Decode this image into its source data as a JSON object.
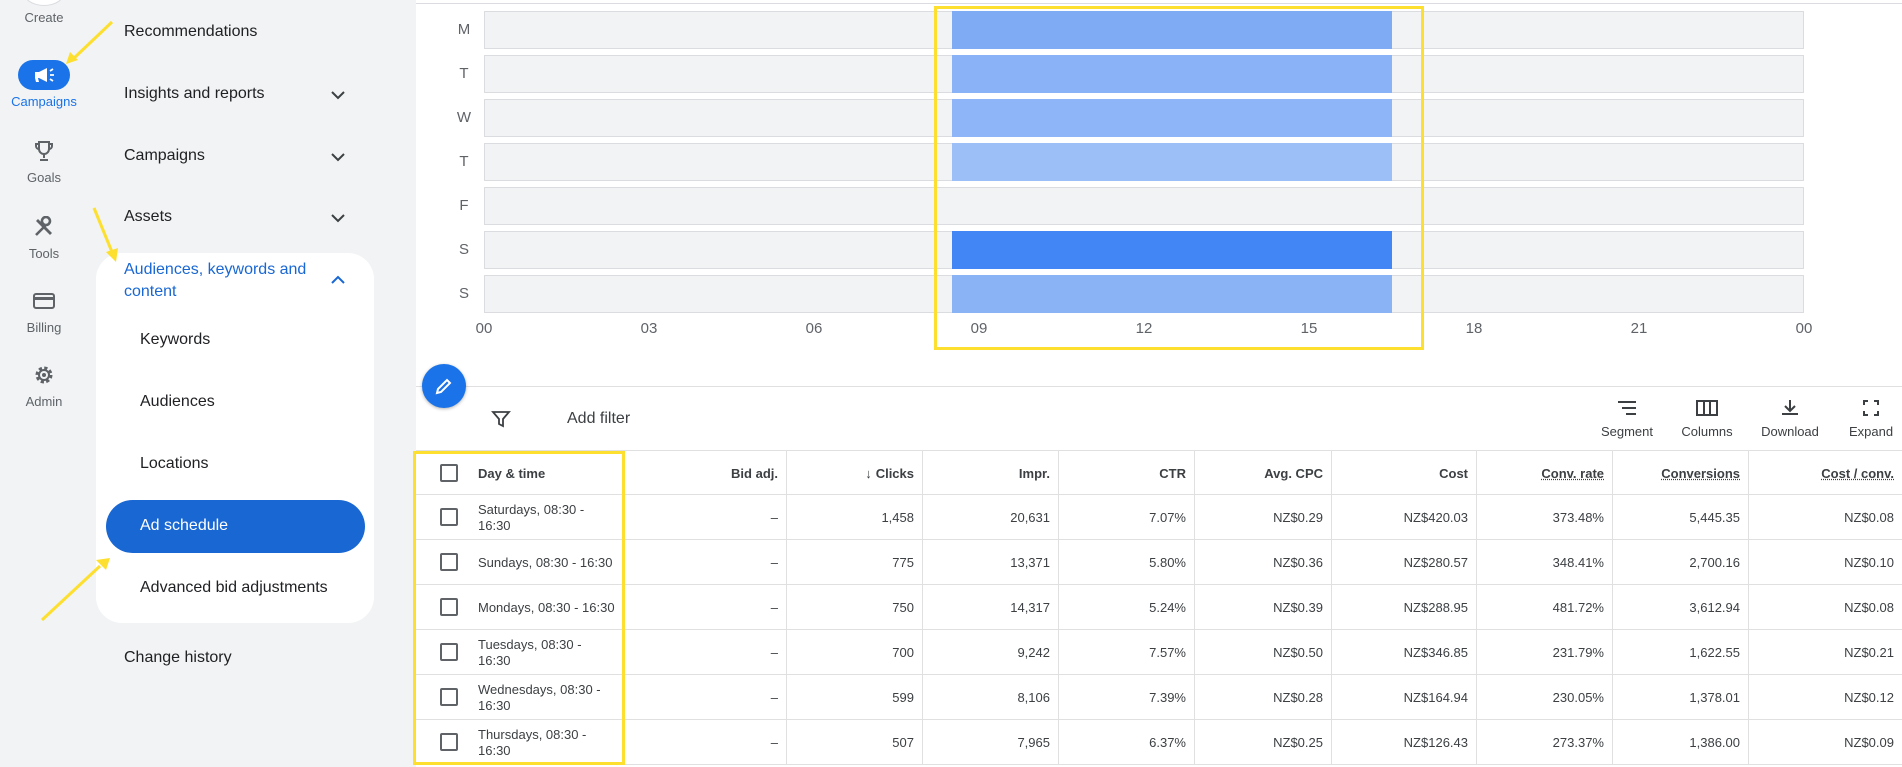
{
  "rail": {
    "create_label": "Create",
    "items": [
      {
        "label": "Campaigns",
        "icon": "megaphone-icon",
        "active": true
      },
      {
        "label": "Goals",
        "icon": "trophy-icon",
        "active": false
      },
      {
        "label": "Tools",
        "icon": "tools-icon",
        "active": false
      },
      {
        "label": "Billing",
        "icon": "credit-card-icon",
        "active": false
      },
      {
        "label": "Admin",
        "icon": "gear-icon",
        "active": false
      }
    ]
  },
  "nav": {
    "recommendations": "Recommendations",
    "insights": "Insights and reports",
    "campaigns": "Campaigns",
    "assets": "Assets",
    "audiences_line1": "Audiences, keywords and",
    "audiences_line2": "content",
    "sub": {
      "keywords": "Keywords",
      "audiences": "Audiences",
      "locations": "Locations",
      "ad_schedule": "Ad schedule",
      "advanced": "Advanced bid adjustments"
    },
    "change_history": "Change history"
  },
  "chart": {
    "days": [
      "M",
      "T",
      "W",
      "T",
      "F",
      "S",
      "S"
    ],
    "ticks": [
      "00",
      "03",
      "06",
      "09",
      "12",
      "15",
      "18",
      "21",
      "00"
    ],
    "schedule_start_hour": 8.5,
    "schedule_end_hour": 16.5,
    "day_active": [
      true,
      true,
      true,
      true,
      false,
      true,
      true
    ],
    "day_colors": [
      "#7fabf5",
      "#8ab3f7",
      "#8db5f7",
      "#9dbff8",
      "",
      "#4285f4",
      "#8ab3f6"
    ]
  },
  "toolbar": {
    "add_filter": "Add filter",
    "segment": "Segment",
    "columns": "Columns",
    "download": "Download",
    "expand": "Expand"
  },
  "table": {
    "headers": {
      "day_time": "Day & time",
      "bid_adj": "Bid adj.",
      "clicks": "Clicks",
      "impr": "Impr.",
      "ctr": "CTR",
      "avg_cpc": "Avg. CPC",
      "cost": "Cost",
      "conv_rate": "Conv. rate",
      "conversions": "Conversions",
      "cost_conv": "Cost / conv."
    },
    "rows": [
      {
        "day_time": "Saturdays, 08:30 - 16:30",
        "bid_adj": "–",
        "clicks": "1,458",
        "impr": "20,631",
        "ctr": "7.07%",
        "avg_cpc": "NZ$0.29",
        "cost": "NZ$420.03",
        "conv_rate": "373.48%",
        "conversions": "5,445.35",
        "cost_conv": "NZ$0.08"
      },
      {
        "day_time": "Sundays, 08:30 - 16:30",
        "bid_adj": "–",
        "clicks": "775",
        "impr": "13,371",
        "ctr": "5.80%",
        "avg_cpc": "NZ$0.36",
        "cost": "NZ$280.57",
        "conv_rate": "348.41%",
        "conversions": "2,700.16",
        "cost_conv": "NZ$0.10"
      },
      {
        "day_time": "Mondays, 08:30 - 16:30",
        "bid_adj": "–",
        "clicks": "750",
        "impr": "14,317",
        "ctr": "5.24%",
        "avg_cpc": "NZ$0.39",
        "cost": "NZ$288.95",
        "conv_rate": "481.72%",
        "conversions": "3,612.94",
        "cost_conv": "NZ$0.08"
      },
      {
        "day_time": "Tuesdays, 08:30 - 16:30",
        "bid_adj": "–",
        "clicks": "700",
        "impr": "9,242",
        "ctr": "7.57%",
        "avg_cpc": "NZ$0.50",
        "cost": "NZ$346.85",
        "conv_rate": "231.79%",
        "conversions": "1,622.55",
        "cost_conv": "NZ$0.21"
      },
      {
        "day_time": "Wednesdays, 08:30 - 16:30",
        "bid_adj": "–",
        "clicks": "599",
        "impr": "8,106",
        "ctr": "7.39%",
        "avg_cpc": "NZ$0.28",
        "cost": "NZ$164.94",
        "conv_rate": "230.05%",
        "conversions": "1,378.01",
        "cost_conv": "NZ$0.12"
      },
      {
        "day_time": "Thursdays, 08:30 - 16:30",
        "bid_adj": "–",
        "clicks": "507",
        "impr": "7,965",
        "ctr": "6.37%",
        "avg_cpc": "NZ$0.25",
        "cost": "NZ$126.43",
        "conv_rate": "273.37%",
        "conversions": "1,386.00",
        "cost_conv": "NZ$0.09"
      }
    ]
  },
  "colors": {
    "accent": "#1a73e8",
    "active_nav": "#1967d2",
    "highlight": "#fde02f"
  }
}
